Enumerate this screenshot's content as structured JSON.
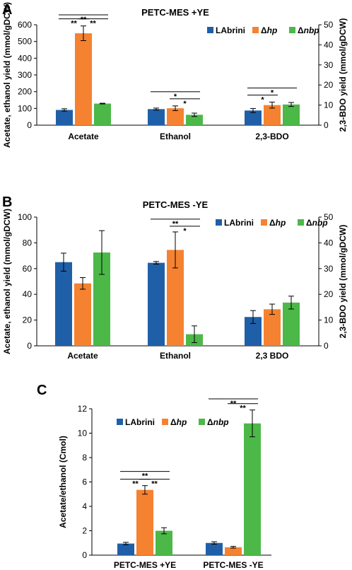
{
  "colors": {
    "LAbrini": "#1f5fa8",
    "hp": "#f58231",
    "nbp": "#4cb848"
  },
  "chart_data": [
    {
      "panel": "A",
      "type": "bar",
      "title": "PETC-MES +YE",
      "categories": [
        "Acetate",
        "Ethanol",
        "2,3-BDO"
      ],
      "ylabel": "Acetate, ethanol yield (mmol/gDCW)",
      "y2label": "2,3-BDO yield (mmol/gDCW)",
      "ylim": [
        0,
        600
      ],
      "yticks": [
        0,
        100,
        200,
        300,
        400,
        500,
        600
      ],
      "y2lim": [
        0,
        50
      ],
      "y2ticks": [
        0,
        10,
        20,
        30,
        40,
        50
      ],
      "secondary_axis_categories": [
        "2,3-BDO"
      ],
      "legend_position": "top-right",
      "series": [
        {
          "name": "LAbrini",
          "display": "LAbrini",
          "values": [
            91,
            96,
            7.3
          ],
          "errors": [
            7,
            6,
            1.0
          ]
        },
        {
          "name": "Δhp",
          "display": "Δhp",
          "values": [
            549,
            101,
            10.0
          ],
          "errors": [
            44,
            14,
            1.5
          ]
        },
        {
          "name": "Δnbp",
          "display": "Δnbp",
          "values": [
            129,
            62,
            10.3
          ],
          "errors": [
            2,
            10,
            1.0
          ]
        }
      ],
      "significance": [
        {
          "cat": 0,
          "from": 0,
          "to": 2,
          "label": "**",
          "level": 2
        },
        {
          "cat": 0,
          "from": 0,
          "to": 1,
          "label": "**",
          "level": 1
        },
        {
          "cat": 0,
          "from": 1,
          "to": 2,
          "label": "**",
          "level": 1
        },
        {
          "cat": 1,
          "from": 0,
          "to": 2,
          "label": "*",
          "level": 2
        },
        {
          "cat": 1,
          "from": 1,
          "to": 2,
          "label": "*",
          "level": 1
        },
        {
          "cat": 2,
          "from": 0,
          "to": 2,
          "label": "*",
          "level": 2
        },
        {
          "cat": 2,
          "from": 0,
          "to": 1,
          "label": "*",
          "level": 1
        }
      ]
    },
    {
      "panel": "B",
      "type": "bar",
      "title": "PETC-MES -YE",
      "categories": [
        "Acetate",
        "Ethanol",
        "2,3 BDO"
      ],
      "ylabel": "Acetate, ethanol yield (mmol/gDCW)",
      "y2label": "2,3-BDO yield (mmol/gDCW)",
      "ylim": [
        0,
        100
      ],
      "yticks": [
        0,
        20,
        40,
        60,
        80,
        100
      ],
      "y2lim": [
        0,
        50
      ],
      "y2ticks": [
        0,
        10,
        20,
        30,
        40,
        50
      ],
      "secondary_axis_categories": [
        "2,3 BDO"
      ],
      "legend_position": "top-right",
      "series": [
        {
          "name": "LAbrini",
          "display": "LAbrini",
          "values": [
            65,
            64.5,
            11.2
          ],
          "errors": [
            7,
            1,
            2.5
          ]
        },
        {
          "name": "Δhp",
          "display": "Δhp",
          "values": [
            48.5,
            74.5,
            14.2
          ],
          "errors": [
            4.5,
            14,
            2.0
          ]
        },
        {
          "name": "Δnbp",
          "display": "Δnbp",
          "values": [
            72.5,
            9,
            16.8
          ],
          "errors": [
            17,
            6.5,
            2.5
          ]
        }
      ],
      "significance": [
        {
          "cat": 1,
          "from": 0,
          "to": 2,
          "label": "**",
          "level": 2
        },
        {
          "cat": 1,
          "from": 1,
          "to": 2,
          "label": "*",
          "level": 1
        }
      ]
    },
    {
      "panel": "C",
      "type": "bar",
      "title": "",
      "categories": [
        "PETC-MES +YE",
        "PETC-MES -YE"
      ],
      "ylabel": "Acetate/ethanol (Cmol)",
      "ylim": [
        0,
        12
      ],
      "yticks": [
        0,
        2,
        4,
        6,
        8,
        10,
        12
      ],
      "legend_position": "top-left",
      "series": [
        {
          "name": "LAbrini",
          "display": "LAbrini",
          "values": [
            0.95,
            1.0
          ],
          "errors": [
            0.1,
            0.1
          ]
        },
        {
          "name": "Δhp",
          "display": "Δhp",
          "values": [
            5.35,
            0.65
          ],
          "errors": [
            0.35,
            0.07
          ]
        },
        {
          "name": "Δnbp",
          "display": "Δnbp",
          "values": [
            2.0,
            10.8
          ],
          "errors": [
            0.25,
            1.1
          ]
        }
      ],
      "significance": [
        {
          "cat": 0,
          "from": 0,
          "to": 2,
          "label": "**",
          "level": 2
        },
        {
          "cat": 0,
          "from": 0,
          "to": 1,
          "label": "**",
          "level": 1
        },
        {
          "cat": 0,
          "from": 1,
          "to": 2,
          "label": "**",
          "level": 1
        },
        {
          "cat": 1,
          "from": 0,
          "to": 2,
          "label": "**",
          "level": 2
        },
        {
          "cat": 1,
          "from": 1,
          "to": 2,
          "label": "**",
          "level": 1
        }
      ]
    }
  ]
}
